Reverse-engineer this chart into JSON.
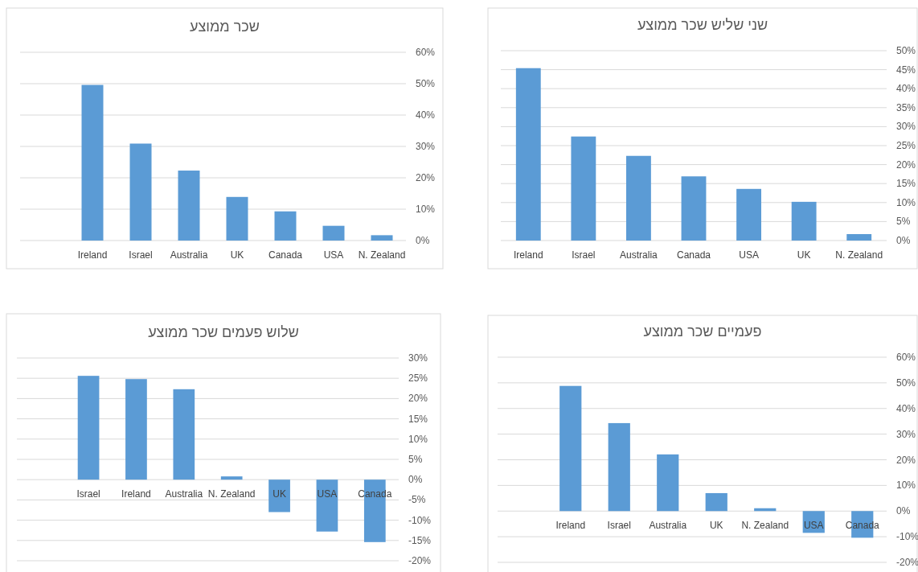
{
  "chart_data": [
    {
      "type": "bar",
      "title": "שכר ממוצע",
      "categories": [
        null,
        "Ireland",
        "Israel",
        "Australia",
        "UK",
        "Canada",
        "USA",
        "N. Zealand"
      ],
      "values": [
        null,
        49.6,
        30.9,
        22.3,
        13.9,
        9.3,
        4.7,
        1.7
      ],
      "color": "#5b9bd5",
      "ylim": [
        0,
        60
      ],
      "yticks": [
        {
          "value": 0,
          "label": "0%"
        },
        {
          "value": 10,
          "label": "10%"
        },
        {
          "value": 20,
          "label": "20%"
        },
        {
          "value": 30,
          "label": "30%"
        },
        {
          "value": 40,
          "label": "40%"
        },
        {
          "value": 50,
          "label": "50%"
        },
        {
          "value": 60,
          "label": "60%"
        }
      ],
      "grid": "y"
    },
    {
      "type": "bar",
      "title": "שני שליש שכר ממוצע",
      "categories": [
        "Ireland",
        "Israel",
        "Australia",
        "Canada",
        "USA",
        "UK",
        "N. Zealand"
      ],
      "values": [
        45.4,
        27.4,
        22.3,
        16.9,
        13.6,
        10.2,
        1.7
      ],
      "color": "#5b9bd5",
      "ylim": [
        0,
        50
      ],
      "yticks": [
        {
          "value": 0,
          "label": "0%"
        },
        {
          "value": 5,
          "label": "5%"
        },
        {
          "value": 10,
          "label": "10%"
        },
        {
          "value": 15,
          "label": "15%"
        },
        {
          "value": 20,
          "label": "20%"
        },
        {
          "value": 25,
          "label": "25%"
        },
        {
          "value": 30,
          "label": "30%"
        },
        {
          "value": 35,
          "label": "35%"
        },
        {
          "value": 40,
          "label": "40%"
        },
        {
          "value": 45,
          "label": "45%"
        },
        {
          "value": 50,
          "label": "50%"
        }
      ],
      "grid": "y"
    },
    {
      "type": "bar",
      "title": "שלוש פעמים שכר ממוצע",
      "categories": [
        null,
        "Israel",
        "Ireland",
        "Australia",
        "N. Zealand",
        "UK",
        "USA",
        "Canada"
      ],
      "values": [
        null,
        25.6,
        24.8,
        22.3,
        0.8,
        -8.0,
        -12.8,
        -15.4
      ],
      "color": "#5b9bd5",
      "ylim": [
        -20,
        30
      ],
      "yticks": [
        {
          "value": -20,
          "label": "-20%"
        },
        {
          "value": -15,
          "label": "-15%"
        },
        {
          "value": -10,
          "label": "-10%"
        },
        {
          "value": -5,
          "label": "-5%"
        },
        {
          "value": 0,
          "label": "0%"
        },
        {
          "value": 5,
          "label": "5%"
        },
        {
          "value": 10,
          "label": "10%"
        },
        {
          "value": 15,
          "label": "15%"
        },
        {
          "value": 20,
          "label": "20%"
        },
        {
          "value": 25,
          "label": "25%"
        },
        {
          "value": 30,
          "label": "30%"
        }
      ],
      "grid": "y"
    },
    {
      "type": "bar",
      "title": "פעמיים שכר ממוצע",
      "categories": [
        null,
        "Ireland",
        "Israel",
        "Australia",
        "UK",
        "N. Zealand",
        "USA",
        "Canada"
      ],
      "values": [
        null,
        48.8,
        34.3,
        22.1,
        7.0,
        1.1,
        -8.5,
        -10.4
      ],
      "color": "#5b9bd5",
      "ylim": [
        -20,
        60
      ],
      "yticks": [
        {
          "value": -20,
          "label": "-20%"
        },
        {
          "value": -10,
          "label": "-10%"
        },
        {
          "value": 0,
          "label": "0%"
        },
        {
          "value": 10,
          "label": "10%"
        },
        {
          "value": 20,
          "label": "20%"
        },
        {
          "value": 30,
          "label": "30%"
        },
        {
          "value": 40,
          "label": "40%"
        },
        {
          "value": 50,
          "label": "50%"
        },
        {
          "value": 60,
          "label": "60%"
        }
      ],
      "grid": "y"
    }
  ]
}
